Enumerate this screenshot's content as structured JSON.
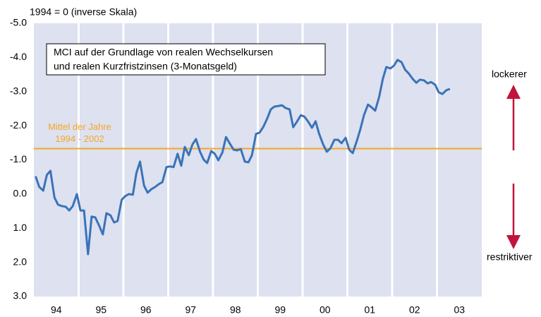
{
  "chart_data": {
    "type": "line",
    "subtitle": "1994 = 0 (inverse Skala)",
    "text_box": [
      "MCI auf der Grundlage von realen Wechselkursen",
      "und realen Kurzfristzinsen (3-Monatsgeld)"
    ],
    "side_labels": {
      "top": "lockerer",
      "bottom": "restriktiver"
    },
    "color": "#3a73b8",
    "background": "#dde1f0",
    "y_inverted": true,
    "xlim": [
      1994,
      2004
    ],
    "xticks": [
      {
        "value": 1994.5,
        "label": "94"
      },
      {
        "value": 1995.5,
        "label": "95"
      },
      {
        "value": 1996.5,
        "label": "96"
      },
      {
        "value": 1997.5,
        "label": "97"
      },
      {
        "value": 1998.5,
        "label": "98"
      },
      {
        "value": 1999.5,
        "label": "99"
      },
      {
        "value": 2000.5,
        "label": "00"
      },
      {
        "value": 2001.5,
        "label": "01"
      },
      {
        "value": 2002.5,
        "label": "02"
      },
      {
        "value": 2003.5,
        "label": "03"
      }
    ],
    "ylim": [
      -5,
      3
    ],
    "yticks": [
      {
        "value": -5,
        "label": "-5.0"
      },
      {
        "value": -4,
        "label": "-4.0"
      },
      {
        "value": -3,
        "label": "-3.0"
      },
      {
        "value": -2,
        "label": "-2.0"
      },
      {
        "value": -1,
        "label": "-1.0"
      },
      {
        "value": 0,
        "label": "0.0"
      },
      {
        "value": 1,
        "label": "1.0"
      },
      {
        "value": 2,
        "label": "2.0"
      },
      {
        "value": 3,
        "label": "3.0"
      }
    ],
    "reference_line": {
      "value": -1.33,
      "color": "#f5a623",
      "label": [
        "Mittel der Jahre",
        "1994 - 2002"
      ]
    },
    "x": [
      1994.04,
      1994.12,
      1994.21,
      1994.29,
      1994.37,
      1994.46,
      1994.54,
      1994.62,
      1994.71,
      1994.79,
      1994.87,
      1994.96,
      1995.04,
      1995.12,
      1995.21,
      1995.29,
      1995.37,
      1995.46,
      1995.54,
      1995.62,
      1995.71,
      1995.79,
      1995.87,
      1995.96,
      1996.04,
      1996.12,
      1996.21,
      1996.29,
      1996.37,
      1996.46,
      1996.54,
      1996.62,
      1996.71,
      1996.79,
      1996.87,
      1996.96,
      1997.04,
      1997.12,
      1997.21,
      1997.29,
      1997.37,
      1997.46,
      1997.54,
      1997.62,
      1997.71,
      1997.79,
      1997.87,
      1997.96,
      1998.04,
      1998.12,
      1998.21,
      1998.29,
      1998.37,
      1998.46,
      1998.54,
      1998.62,
      1998.71,
      1998.79,
      1998.87,
      1998.96,
      1999.04,
      1999.12,
      1999.21,
      1999.29,
      1999.37,
      1999.46,
      1999.54,
      1999.62,
      1999.71,
      1999.79,
      1999.87,
      1999.96,
      2000.04,
      2000.12,
      2000.21,
      2000.29,
      2000.37,
      2000.46,
      2000.54,
      2000.62,
      2000.71,
      2000.79,
      2000.87,
      2000.96,
      2001.04,
      2001.12,
      2001.21,
      2001.29,
      2001.37,
      2001.46,
      2001.54,
      2001.62,
      2001.71,
      2001.79,
      2001.87,
      2001.96,
      2002.04,
      2002.12,
      2002.21,
      2002.29,
      2002.37,
      2002.46,
      2002.54,
      2002.62,
      2002.71,
      2002.79,
      2002.87,
      2002.96,
      2003.04,
      2003.12,
      2003.21,
      2003.29
    ],
    "values": [
      -0.52,
      -0.21,
      -0.1,
      -0.56,
      -0.68,
      0.1,
      0.31,
      0.35,
      0.37,
      0.48,
      0.35,
      0.0,
      0.48,
      0.48,
      1.76,
      0.66,
      0.68,
      0.93,
      1.18,
      0.56,
      0.62,
      0.83,
      0.79,
      0.17,
      0.06,
      0.0,
      0.02,
      -0.62,
      -0.95,
      -0.25,
      -0.04,
      -0.14,
      -0.21,
      -0.29,
      -0.35,
      -0.79,
      -0.81,
      -0.79,
      -1.18,
      -0.83,
      -1.38,
      -1.14,
      -1.45,
      -1.61,
      -1.24,
      -1.01,
      -0.91,
      -1.26,
      -1.18,
      -0.99,
      -1.22,
      -1.67,
      -1.49,
      -1.3,
      -1.28,
      -1.32,
      -0.95,
      -0.93,
      -1.14,
      -1.76,
      -1.8,
      -1.96,
      -2.21,
      -2.48,
      -2.56,
      -2.58,
      -2.6,
      -2.52,
      -2.48,
      -1.96,
      -2.11,
      -2.31,
      -2.27,
      -2.13,
      -1.94,
      -2.13,
      -1.76,
      -1.45,
      -1.24,
      -1.34,
      -1.59,
      -1.59,
      -1.49,
      -1.65,
      -1.3,
      -1.2,
      -1.55,
      -1.9,
      -2.31,
      -2.62,
      -2.54,
      -2.44,
      -2.85,
      -3.37,
      -3.72,
      -3.68,
      -3.76,
      -3.93,
      -3.86,
      -3.64,
      -3.53,
      -3.37,
      -3.26,
      -3.35,
      -3.33,
      -3.24,
      -3.28,
      -3.2,
      -2.98,
      -2.93,
      -3.04,
      -3.08
    ]
  }
}
